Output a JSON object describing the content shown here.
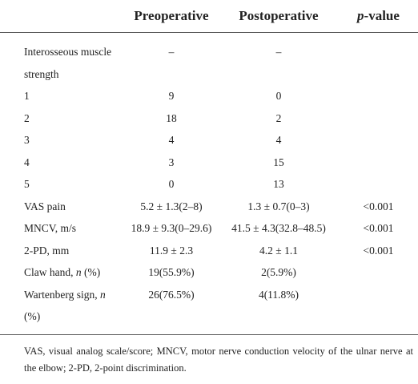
{
  "table": {
    "header": [
      {
        "parts": [
          "Preoperative"
        ],
        "italic_parts": []
      },
      {
        "parts": [
          "Postoperative"
        ],
        "italic_parts": []
      },
      {
        "parts": [
          "p",
          "-value"
        ],
        "italic_parts": [
          0
        ]
      }
    ],
    "rows": [
      {
        "label": [
          "Interosseous muscle strength"
        ],
        "italic_parts": [],
        "pre": "–",
        "post": "–"
      },
      {
        "label": [
          "1"
        ],
        "italic_parts": [],
        "pre": "9",
        "post": "0"
      },
      {
        "label": [
          "2"
        ],
        "italic_parts": [],
        "pre": "18",
        "post": "2"
      },
      {
        "label": [
          "3"
        ],
        "italic_parts": [],
        "pre": "4",
        "post": "4"
      },
      {
        "label": [
          "4"
        ],
        "italic_parts": [],
        "pre": "3",
        "post": "15"
      },
      {
        "label": [
          "5"
        ],
        "italic_parts": [],
        "pre": "0",
        "post": "13"
      },
      {
        "label": [
          "VAS pain"
        ],
        "italic_parts": [],
        "pre": "5.2 ± 1.3(2–8)",
        "post": "1.3 ± 0.7(0–3)",
        "p": "<0.001"
      },
      {
        "label": [
          "MNCV, m/s"
        ],
        "italic_parts": [],
        "pre": "18.9 ± 9.3(0–29.6)",
        "post": "41.5 ± 4.3(32.8–48.5)",
        "p": "<0.001"
      },
      {
        "label": [
          "2-PD, mm"
        ],
        "italic_parts": [],
        "pre": "11.9 ± 2.3",
        "post": "4.2 ± 1.1",
        "p": "<0.001"
      },
      {
        "label": [
          "Claw hand, ",
          "n",
          " (%)"
        ],
        "italic_parts": [
          1
        ],
        "pre": "19(55.9%)",
        "post": "2(5.9%)"
      },
      {
        "label": [
          "Wartenberg sign, ",
          "n",
          " (%)"
        ],
        "italic_parts": [
          1
        ],
        "pre": "26(76.5%)",
        "post": "4(11.8%)"
      }
    ],
    "footnote": "VAS, visual analog scale/score; MNCV, motor nerve conduction velocity of the ulnar nerve at the elbow; 2-PD, 2-point discrimination."
  }
}
